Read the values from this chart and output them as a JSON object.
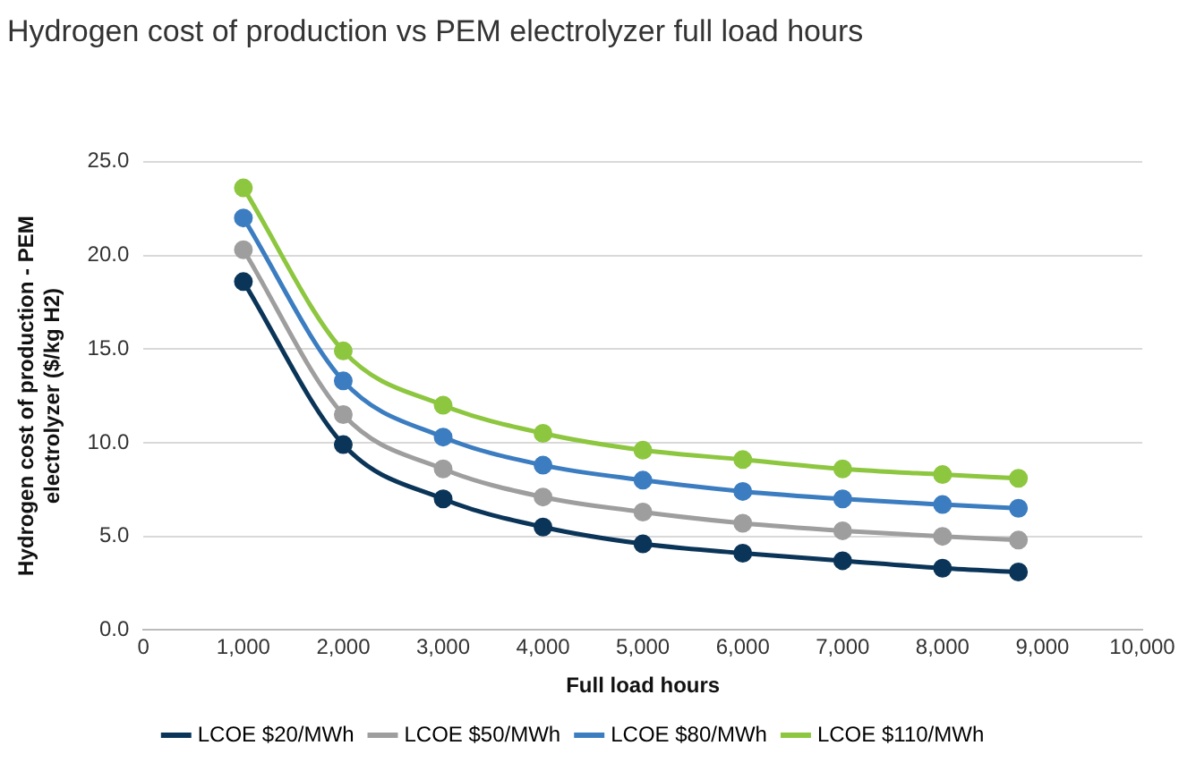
{
  "chart_data": {
    "type": "line",
    "title": "Hydrogen cost of production vs PEM electrolyzer full load hours",
    "xlabel": "Full load hours",
    "ylabel": "Hydrogen cost of production - PEM electrolyzer ($/kg H2)",
    "x": [
      1000,
      2000,
      3000,
      4000,
      5000,
      6000,
      7000,
      8000,
      8760
    ],
    "series": [
      {
        "name": "LCOE $20/MWh",
        "color": "#0b3558",
        "values": [
          18.6,
          9.9,
          7.0,
          5.5,
          4.6,
          4.1,
          3.7,
          3.3,
          3.1
        ]
      },
      {
        "name": "LCOE $50/MWh",
        "color": "#9e9e9e",
        "values": [
          20.3,
          11.5,
          8.6,
          7.1,
          6.3,
          5.7,
          5.3,
          5.0,
          4.8
        ]
      },
      {
        "name": "LCOE $80/MWh",
        "color": "#3b7dc0",
        "values": [
          22.0,
          13.3,
          10.3,
          8.8,
          8.0,
          7.4,
          7.0,
          6.7,
          6.5
        ]
      },
      {
        "name": "LCOE $110/MWh",
        "color": "#8dc63f",
        "values": [
          23.6,
          14.9,
          12.0,
          10.5,
          9.6,
          9.1,
          8.6,
          8.3,
          8.1
        ]
      }
    ],
    "xlim": [
      0,
      10000
    ],
    "xticks": [
      0,
      {
        "value": 1000,
        "label": "1,000"
      },
      {
        "value": 2000,
        "label": "2,000"
      },
      {
        "value": 3000,
        "label": "3,000"
      },
      {
        "value": 4000,
        "label": "4,000"
      },
      {
        "value": 5000,
        "label": "5,000"
      },
      {
        "value": 6000,
        "label": "6,000"
      },
      {
        "value": 7000,
        "label": "7,000"
      },
      {
        "value": 8000,
        "label": "8,000"
      },
      {
        "value": 9000,
        "label": "9,000"
      },
      {
        "value": 10000,
        "label": "10,000"
      }
    ],
    "ylim": [
      0,
      25
    ],
    "yticks": [
      {
        "value": 0,
        "label": "0.0"
      },
      {
        "value": 5,
        "label": "5.0"
      },
      {
        "value": 10,
        "label": "10.0"
      },
      {
        "value": 15,
        "label": "15.0"
      },
      {
        "value": 20,
        "label": "20.0"
      },
      {
        "value": 25,
        "label": "25.0"
      }
    ],
    "grid": "y",
    "legend": "bottom",
    "marker": "circle",
    "line_style": "solid"
  }
}
